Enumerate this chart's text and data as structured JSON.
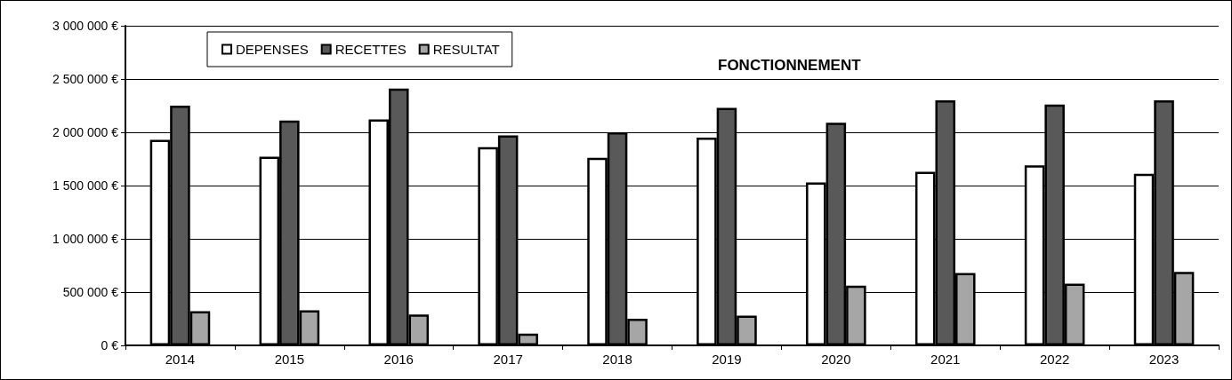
{
  "chart_data": {
    "type": "bar",
    "title": "FONCTIONNEMENT",
    "categories": [
      "2014",
      "2015",
      "2016",
      "2017",
      "2018",
      "2019",
      "2020",
      "2021",
      "2022",
      "2023"
    ],
    "series": [
      {
        "name": "DEPENSES",
        "color": "#ffffff",
        "values": [
          1930000,
          1770000,
          2120000,
          1860000,
          1760000,
          1950000,
          1530000,
          1630000,
          1690000,
          1610000
        ]
      },
      {
        "name": "RECETTES",
        "color": "#595959",
        "values": [
          2250000,
          2110000,
          2410000,
          1970000,
          2000000,
          2230000,
          2090000,
          2300000,
          2260000,
          2300000
        ]
      },
      {
        "name": "RESULTAT",
        "color": "#a6a6a6",
        "values": [
          320000,
          330000,
          290000,
          110000,
          250000,
          280000,
          560000,
          680000,
          580000,
          690000
        ]
      }
    ],
    "ylim": [
      0,
      3000000
    ],
    "yticks": [
      {
        "value": 0,
        "label": "0 €"
      },
      {
        "value": 500000,
        "label": "500 000 €"
      },
      {
        "value": 1000000,
        "label": "1 000 000 €"
      },
      {
        "value": 1500000,
        "label": "1 500 000 €"
      },
      {
        "value": 2000000,
        "label": "2 000 000 €"
      },
      {
        "value": 2500000,
        "label": "2 500 000 €"
      },
      {
        "value": 3000000,
        "label": "3 000 000 €"
      }
    ],
    "grid": "y",
    "legend": "top left"
  }
}
